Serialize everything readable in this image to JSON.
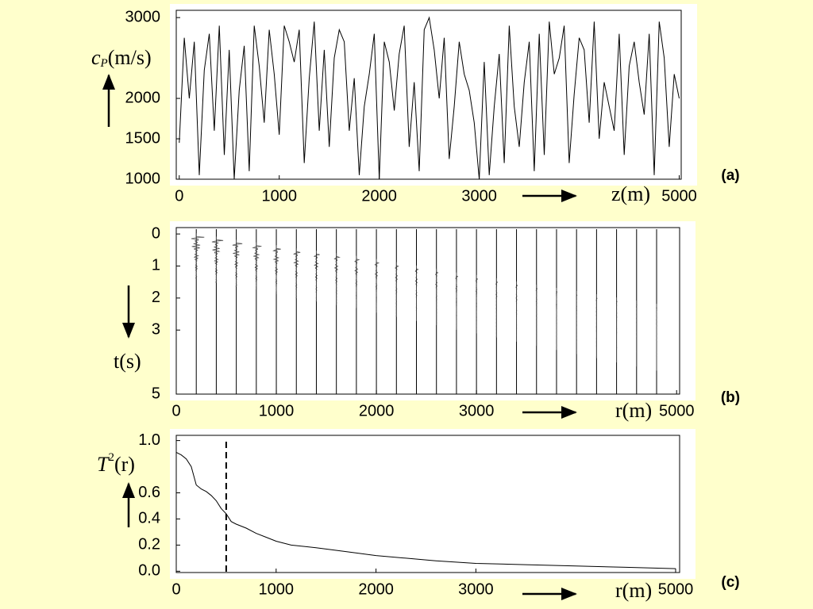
{
  "chart_data": [
    {
      "type": "line",
      "panel_label": "(a)",
      "ylabel": "c",
      "ylabel_sub": "P",
      "ylabel_unit": "(m/s)",
      "xlabel": "z(m)",
      "color": "#000000",
      "x": [
        0,
        50,
        100,
        150,
        200,
        250,
        300,
        350,
        400,
        450,
        500,
        550,
        600,
        650,
        700,
        750,
        800,
        850,
        900,
        950,
        1000,
        1050,
        1100,
        1150,
        1200,
        1250,
        1300,
        1350,
        1400,
        1450,
        1500,
        1550,
        1600,
        1650,
        1700,
        1750,
        1800,
        1850,
        1900,
        1950,
        2000,
        2050,
        2100,
        2150,
        2200,
        2250,
        2300,
        2350,
        2400,
        2450,
        2500,
        2550,
        2600,
        2650,
        2700,
        2750,
        2800,
        2850,
        2900,
        2950,
        3000,
        3050,
        3100,
        3150,
        3200,
        3250,
        3300,
        3350,
        3400,
        3450,
        3500,
        3550,
        3600,
        3650,
        3700,
        3750,
        3800,
        3850,
        3900,
        3950,
        4000,
        4050,
        4100,
        4150,
        4200,
        4250,
        4300,
        4350,
        4400,
        4450,
        4500,
        4550,
        4600,
        4650,
        4700,
        4750,
        4800,
        4850,
        4900,
        4950,
        5000
      ],
      "values": [
        1450,
        2750,
        2000,
        2700,
        1050,
        2350,
        2800,
        1600,
        2900,
        1300,
        2600,
        1000,
        2100,
        2650,
        1100,
        2900,
        2400,
        1700,
        2850,
        2300,
        1550,
        2900,
        2700,
        2450,
        2850,
        1200,
        2250,
        2950,
        1600,
        2600,
        1400,
        2500,
        2850,
        2700,
        1600,
        2250,
        1050,
        1900,
        2300,
        2800,
        1000,
        2700,
        2450,
        1850,
        2550,
        2900,
        1400,
        2200,
        1100,
        2850,
        3000,
        2600,
        2000,
        2750,
        1250,
        1900,
        2700,
        2300,
        2100,
        1700,
        1000,
        2450,
        1050,
        1900,
        2550,
        1200,
        2900,
        1900,
        1400,
        2200,
        2700,
        1100,
        2800,
        1300,
        2950,
        2300,
        2500,
        2900,
        1200,
        2050,
        2750,
        2600,
        1700,
        2950,
        1500,
        2200,
        1900,
        1600,
        2800,
        1300,
        2400,
        2700,
        2200,
        1800,
        2800,
        1050,
        2950,
        2500,
        1400,
        2300,
        2000
      ],
      "xlim": [
        -30,
        5020
      ],
      "xticks": [
        0,
        1000,
        2000,
        3000,
        5000
      ],
      "ylim": [
        1000,
        3090
      ],
      "yticks": [
        1000,
        1500,
        2000,
        3000
      ]
    },
    {
      "type": "wiggle",
      "panel_label": "(b)",
      "ylabel": "t(s)",
      "xlabel": "r(m)",
      "color": "#000000",
      "y_inverted": true,
      "r": [
        200,
        400,
        600,
        800,
        1000,
        1200,
        1400,
        1600,
        1800,
        2000,
        2200,
        2400,
        2600,
        2800,
        3000,
        3200,
        3400,
        3600,
        3800,
        4000,
        4200,
        4400,
        4600,
        4800
      ],
      "arrival": [
        0.08,
        0.18,
        0.28,
        0.36,
        0.45,
        0.55,
        0.62,
        0.7,
        0.78,
        0.88,
        0.98,
        1.08,
        1.18,
        1.3,
        1.38,
        1.48,
        1.58,
        1.68,
        1.78,
        1.88,
        1.98,
        2.08,
        2.18,
        2.28
      ],
      "xlim": [
        0,
        5030
      ],
      "xticks": [
        0,
        1000,
        2000,
        3000,
        5000
      ],
      "ylim": [
        -0.2,
        5
      ],
      "yticks": [
        0,
        1,
        2,
        3,
        5
      ]
    },
    {
      "type": "line",
      "panel_label": "(c)",
      "ylabel": "T",
      "ylabel_sup": "2",
      "ylabel_unit": "(r)",
      "xlabel": "r(m)",
      "color": "#000000",
      "marker_x": 500,
      "x": [
        0,
        50,
        100,
        150,
        200,
        250,
        300,
        350,
        400,
        450,
        500,
        550,
        600,
        700,
        800,
        900,
        1000,
        1150,
        1400,
        1700,
        2000,
        2300,
        2600,
        3000,
        3500,
        4000,
        4500,
        5000
      ],
      "values": [
        0.91,
        0.89,
        0.86,
        0.8,
        0.66,
        0.63,
        0.61,
        0.58,
        0.54,
        0.48,
        0.44,
        0.38,
        0.36,
        0.33,
        0.29,
        0.26,
        0.23,
        0.2,
        0.18,
        0.15,
        0.12,
        0.1,
        0.08,
        0.06,
        0.05,
        0.04,
        0.03,
        0.02
      ],
      "xlim": [
        0,
        5040
      ],
      "xticks": [
        0,
        1000,
        2000,
        3000,
        5000
      ],
      "ylim": [
        -0.01,
        1.04
      ],
      "yticks": [
        {
          "value": 0,
          "label": "0.0"
        },
        0.2,
        0.4,
        0.6,
        {
          "value": 1,
          "label": "1.0"
        }
      ]
    }
  ]
}
